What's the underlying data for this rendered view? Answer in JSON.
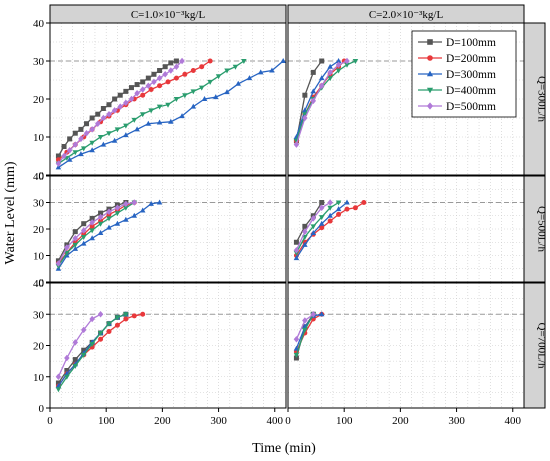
{
  "chart_data": {
    "type": "line",
    "xlabel": "Time (min)",
    "ylabel": "Water Level (mm)",
    "xlim": [
      0,
      420
    ],
    "ylim": [
      0,
      40
    ],
    "x_ticks": [
      0,
      100,
      200,
      300,
      400
    ],
    "y_ticks": [
      0,
      10,
      20,
      30,
      40
    ],
    "reference_line_y": 30,
    "grid": true,
    "legend_position": "top-right",
    "column_strips": [
      "C=1.0×10⁻³kg/L",
      "C=2.0×10⁻³kg/L"
    ],
    "row_strips": [
      "Q=300L/h",
      "Q=500L/h",
      "Q=700L/h"
    ],
    "series_styles": [
      {
        "name": "D=100mm",
        "color": "#555555",
        "marker": "square"
      },
      {
        "name": "D=200mm",
        "color": "#e8383b",
        "marker": "circle"
      },
      {
        "name": "D=300mm",
        "color": "#2764c2",
        "marker": "triangle-up"
      },
      {
        "name": "D=400mm",
        "color": "#2a9d6e",
        "marker": "triangle-down"
      },
      {
        "name": "D=500mm",
        "color": "#b07ad8",
        "marker": "diamond"
      }
    ],
    "panels": [
      {
        "row": 0,
        "col": 0,
        "series": [
          {
            "name": "D=100mm",
            "x": [
              15,
              25,
              35,
              45,
              55,
              65,
              75,
              85,
              95,
              105,
              115,
              125,
              135,
              145,
              155,
              165,
              175,
              185,
              195,
              205,
              215,
              225
            ],
            "y": [
              5,
              7.5,
              9.5,
              11,
              12,
              13.5,
              15,
              16,
              17.5,
              18.5,
              20,
              21,
              22,
              23,
              23.8,
              24.5,
              25.5,
              26.5,
              27.5,
              28.5,
              29.5,
              30
            ]
          },
          {
            "name": "D=200mm",
            "x": [
              15,
              30,
              45,
              60,
              75,
              90,
              105,
              120,
              135,
              150,
              165,
              180,
              195,
              210,
              225,
              240,
              255,
              270,
              285
            ],
            "y": [
              4,
              6,
              8,
              10,
              12,
              14,
              15.5,
              17,
              18.5,
              20,
              21,
              22.5,
              23.5,
              24.5,
              25.5,
              26.5,
              27.5,
              28.5,
              30
            ]
          },
          {
            "name": "D=300mm",
            "x": [
              15,
              35,
              55,
              75,
              95,
              115,
              135,
              155,
              175,
              195,
              215,
              235,
              255,
              275,
              295,
              315,
              335,
              355,
              375,
              395,
              415
            ],
            "y": [
              2,
              4,
              5.5,
              6.5,
              8,
              9,
              10.5,
              12,
              13.5,
              13.8,
              14,
              15.5,
              18,
              20,
              20.5,
              21.8,
              24,
              25.5,
              27,
              27.5,
              30
            ]
          },
          {
            "name": "D=400mm",
            "x": [
              15,
              30,
              45,
              60,
              75,
              90,
              105,
              120,
              135,
              150,
              165,
              180,
              195,
              210,
              225,
              240,
              255,
              270,
              285,
              300,
              315,
              330,
              345
            ],
            "y": [
              3,
              4.5,
              6,
              7,
              8.5,
              10,
              11,
              12,
              13,
              14.5,
              16,
              17,
              18,
              18.5,
              20,
              21,
              22,
              23,
              24.5,
              26,
              27.5,
              28.5,
              30
            ]
          },
          {
            "name": "D=500mm",
            "x": [
              15,
              25,
              35,
              45,
              55,
              65,
              75,
              85,
              95,
              105,
              115,
              125,
              135,
              145,
              155,
              165,
              175,
              185,
              195,
              205,
              215,
              225,
              235
            ],
            "y": [
              3,
              5,
              6.5,
              8,
              9.5,
              11,
              12,
              13.5,
              15,
              16,
              17,
              18,
              19,
              20,
              21.5,
              22.5,
              23.5,
              24.5,
              25.5,
              26.5,
              27.5,
              28.5,
              30
            ]
          }
        ]
      },
      {
        "row": 0,
        "col": 1,
        "series": [
          {
            "name": "D=100mm",
            "x": [
              15,
              30,
              45,
              60
            ],
            "y": [
              9,
              21,
              27,
              30
            ]
          },
          {
            "name": "D=200mm",
            "x": [
              15,
              30,
              45,
              60,
              75,
              90,
              100
            ],
            "y": [
              9,
              16,
              20.5,
              23.5,
              26.5,
              28.5,
              30
            ]
          },
          {
            "name": "D=300mm",
            "x": [
              15,
              30,
              45,
              60,
              75,
              90
            ],
            "y": [
              10,
              17,
              22,
              25.5,
              28.5,
              30
            ]
          },
          {
            "name": "D=400mm",
            "x": [
              15,
              30,
              45,
              60,
              75,
              90,
              105,
              120
            ],
            "y": [
              9,
              16,
              20,
              23,
              25.5,
              27.5,
              29,
              30
            ]
          },
          {
            "name": "D=500mm",
            "x": [
              15,
              30,
              45,
              60,
              75,
              90,
              105
            ],
            "y": [
              8,
              15,
              19.5,
              23.5,
              27,
              29,
              30
            ]
          }
        ]
      },
      {
        "row": 1,
        "col": 0,
        "series": [
          {
            "name": "D=100mm",
            "x": [
              15,
              30,
              45,
              60,
              75,
              90,
              105,
              120,
              135
            ],
            "y": [
              8,
              14,
              19,
              22,
              24,
              26,
              27.5,
              29,
              30
            ]
          },
          {
            "name": "D=200mm",
            "x": [
              15,
              30,
              45,
              60,
              75,
              90,
              105,
              120,
              135,
              150
            ],
            "y": [
              7,
              11,
              15,
              18,
              21,
              23,
              25.5,
              27,
              29,
              30
            ]
          },
          {
            "name": "D=300mm",
            "x": [
              15,
              30,
              45,
              60,
              75,
              90,
              105,
              120,
              135,
              150,
              165,
              180,
              195
            ],
            "y": [
              5,
              10,
              12.5,
              14.5,
              16.5,
              18.5,
              20.5,
              22,
              23.5,
              25,
              27,
              29.5,
              30
            ]
          },
          {
            "name": "D=400mm",
            "x": [
              15,
              30,
              45,
              60,
              75,
              90,
              105,
              120,
              135,
              150
            ],
            "y": [
              6,
              11,
              14,
              17,
              19.5,
              22,
              24,
              26,
              28,
              30
            ]
          },
          {
            "name": "D=500mm",
            "x": [
              15,
              30,
              45,
              60,
              75,
              90,
              105,
              120,
              135,
              150
            ],
            "y": [
              7,
              13,
              16.5,
              19.5,
              22.5,
              24.5,
              26.5,
              28,
              29.5,
              30
            ]
          }
        ]
      },
      {
        "row": 1,
        "col": 1,
        "series": [
          {
            "name": "D=100mm",
            "x": [
              15,
              30,
              45,
              60
            ],
            "y": [
              15,
              21,
              25,
              30
            ]
          },
          {
            "name": "D=200mm",
            "x": [
              15,
              30,
              45,
              60,
              75,
              90,
              105,
              120,
              135
            ],
            "y": [
              10,
              15,
              18,
              20.5,
              23,
              25.5,
              27.5,
              28,
              30
            ]
          },
          {
            "name": "D=300mm",
            "x": [
              15,
              30,
              45,
              60,
              75,
              90,
              105
            ],
            "y": [
              9,
              14,
              18.5,
              22,
              25,
              27.5,
              30
            ]
          },
          {
            "name": "D=400mm",
            "x": [
              15,
              30,
              45,
              60,
              75,
              90
            ],
            "y": [
              11,
              17,
              21,
              24.5,
              28,
              30
            ]
          },
          {
            "name": "D=500mm",
            "x": [
              15,
              30,
              45,
              60,
              75
            ],
            "y": [
              12,
              19,
              24,
              28,
              30
            ]
          }
        ]
      },
      {
        "row": 2,
        "col": 0,
        "series": [
          {
            "name": "D=100mm",
            "x": [
              15,
              30,
              45,
              60,
              75,
              90,
              105,
              120,
              135
            ],
            "y": [
              8,
              12,
              15.5,
              18.5,
              21,
              24,
              27,
              29,
              30
            ]
          },
          {
            "name": "D=200mm",
            "x": [
              15,
              30,
              45,
              60,
              75,
              90,
              105,
              120,
              135,
              150,
              165
            ],
            "y": [
              7,
              11,
              14,
              17,
              19.5,
              22,
              24.5,
              26.5,
              28.5,
              29.5,
              30
            ]
          },
          {
            "name": "D=300mm",
            "x": [
              15,
              30,
              45,
              60,
              75,
              90,
              105,
              120,
              135
            ],
            "y": [
              7,
              11,
              14,
              17.5,
              21,
              24,
              27,
              29,
              30
            ]
          },
          {
            "name": "D=400mm",
            "x": [
              15,
              30,
              45,
              60,
              75,
              90,
              105,
              120,
              135
            ],
            "y": [
              6,
              10,
              13.5,
              17,
              20.5,
              24,
              27,
              29,
              30
            ]
          },
          {
            "name": "D=500mm",
            "x": [
              15,
              30,
              45,
              60,
              75,
              90
            ],
            "y": [
              10,
              16,
              21,
              25,
              28.5,
              30
            ]
          }
        ]
      },
      {
        "row": 2,
        "col": 1,
        "series": [
          {
            "name": "D=100mm",
            "x": [
              15,
              30,
              45
            ],
            "y": [
              16,
              26,
              30
            ]
          },
          {
            "name": "D=200mm",
            "x": [
              15,
              30,
              45,
              60
            ],
            "y": [
              18,
              24,
              28.5,
              30
            ]
          },
          {
            "name": "D=300mm",
            "x": [
              15,
              30,
              45,
              60
            ],
            "y": [
              19,
              26,
              29.5,
              30
            ]
          },
          {
            "name": "D=400mm",
            "x": [
              15,
              30,
              45
            ],
            "y": [
              17,
              25,
              30
            ]
          },
          {
            "name": "D=500mm",
            "x": [
              15,
              30,
              45
            ],
            "y": [
              22,
              28,
              30
            ]
          }
        ]
      }
    ]
  }
}
